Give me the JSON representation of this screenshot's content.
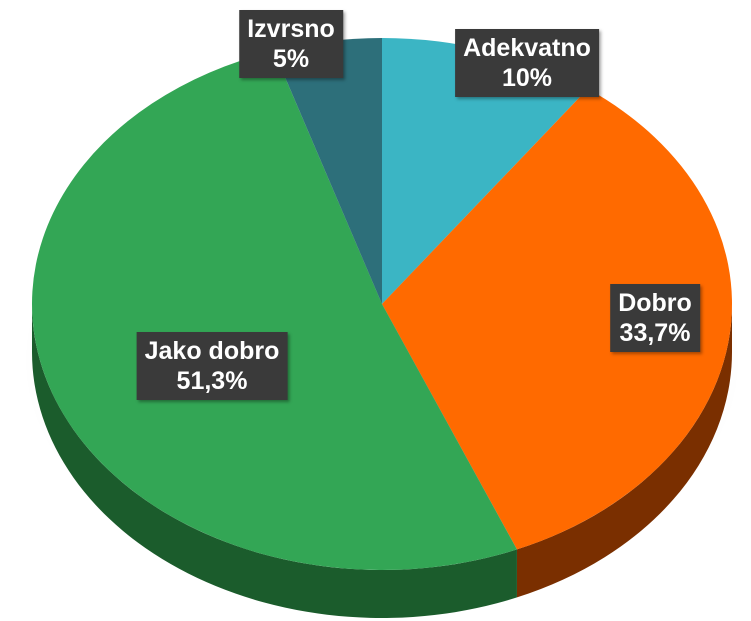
{
  "chart_data": {
    "type": "pie",
    "title": "",
    "start_angle_deg": 0,
    "direction": "clockwise",
    "slices": [
      {
        "category": "Adekvatno",
        "value": 10,
        "value_label": "10%",
        "color": "#3bb5c4",
        "side_color": "#1f7f8a"
      },
      {
        "category": "Dobro",
        "value": 33.7,
        "value_label": "33,7%",
        "color": "#ff6a00",
        "side_color": "#7a2f00"
      },
      {
        "category": "Jako dobro",
        "value": 51.3,
        "value_label": "51,3%",
        "color": "#33a655",
        "side_color": "#1b5c2c"
      },
      {
        "category": "Izvrsno",
        "value": 5,
        "value_label": "5%",
        "color": "#2d6f7a",
        "side_color": "#184047"
      }
    ]
  }
}
